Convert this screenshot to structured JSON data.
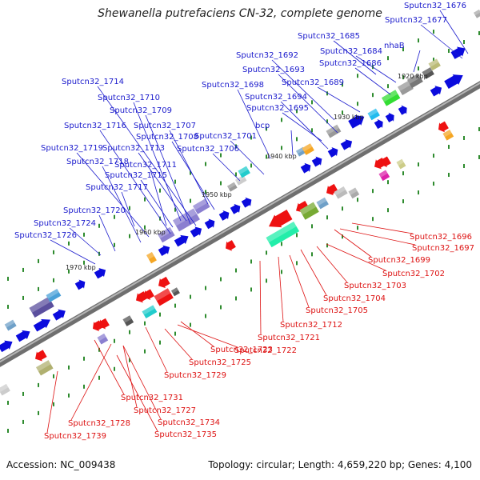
{
  "header": {
    "title": "Shewanella putrefaciens CN-32, complete genome"
  },
  "footer": {
    "accession": "Accession: NC_009438",
    "summary": "Topology: circular; Length: 4,659,220 bp; Genes: 4,100"
  },
  "colors": {
    "forward_label": "#1a1acc",
    "reverse_label": "#dd1111",
    "backbone": "#888888",
    "tick": "#2e8b2e"
  },
  "kbp_markers": [
    "1920 kbp",
    "1930 kbp",
    "1940 kbp",
    "1950 kbp",
    "1960 kbp",
    "1970 kbp"
  ],
  "forward_labels": [
    "Sputcn32_1676",
    "Sputcn32_1677",
    "Sputcn32_1685",
    "Sputcn32_1684",
    "nhaB",
    "Sputcn32_1686",
    "Sputcn32_1692",
    "Sputcn32_1693",
    "Sputcn32_1689",
    "Sputcn32_1714",
    "Sputcn32_1698",
    "Sputcn32_1694",
    "Sputcn32_1710",
    "Sputcn32_1695",
    "Sputcn32_1709",
    "Sputcn32_1716",
    "Sputcn32_1707",
    "bcp",
    "Sputcn32_1708",
    "Sputcn32_1701",
    "Sputcn32_1719",
    "Sputcn32_1713",
    "Sputcn32_1706",
    "Sputcn32_1718",
    "Sputcn32_1711",
    "Sputcn32_1715",
    "Sputcn32_1717",
    "Sputcn32_1720",
    "Sputcn32_1724",
    "Sputcn32_1726"
  ],
  "reverse_labels": [
    "Sputcn32_1696",
    "Sputcn32_1697",
    "Sputcn32_1699",
    "Sputcn32_1702",
    "Sputcn32_1703",
    "Sputcn32_1704",
    "Sputcn32_1705",
    "Sputcn32_1712",
    "Sputcn32_1721",
    "Sputcn32_1722",
    "Sputcn32_1723",
    "Sputcn32_1725",
    "Sputcn32_1729",
    "Sputcn32_1731",
    "Sputcn32_1727",
    "Sputcn32_1734",
    "Sputcn32_1728",
    "Sputcn32_1735",
    "Sputcn32_1739"
  ]
}
